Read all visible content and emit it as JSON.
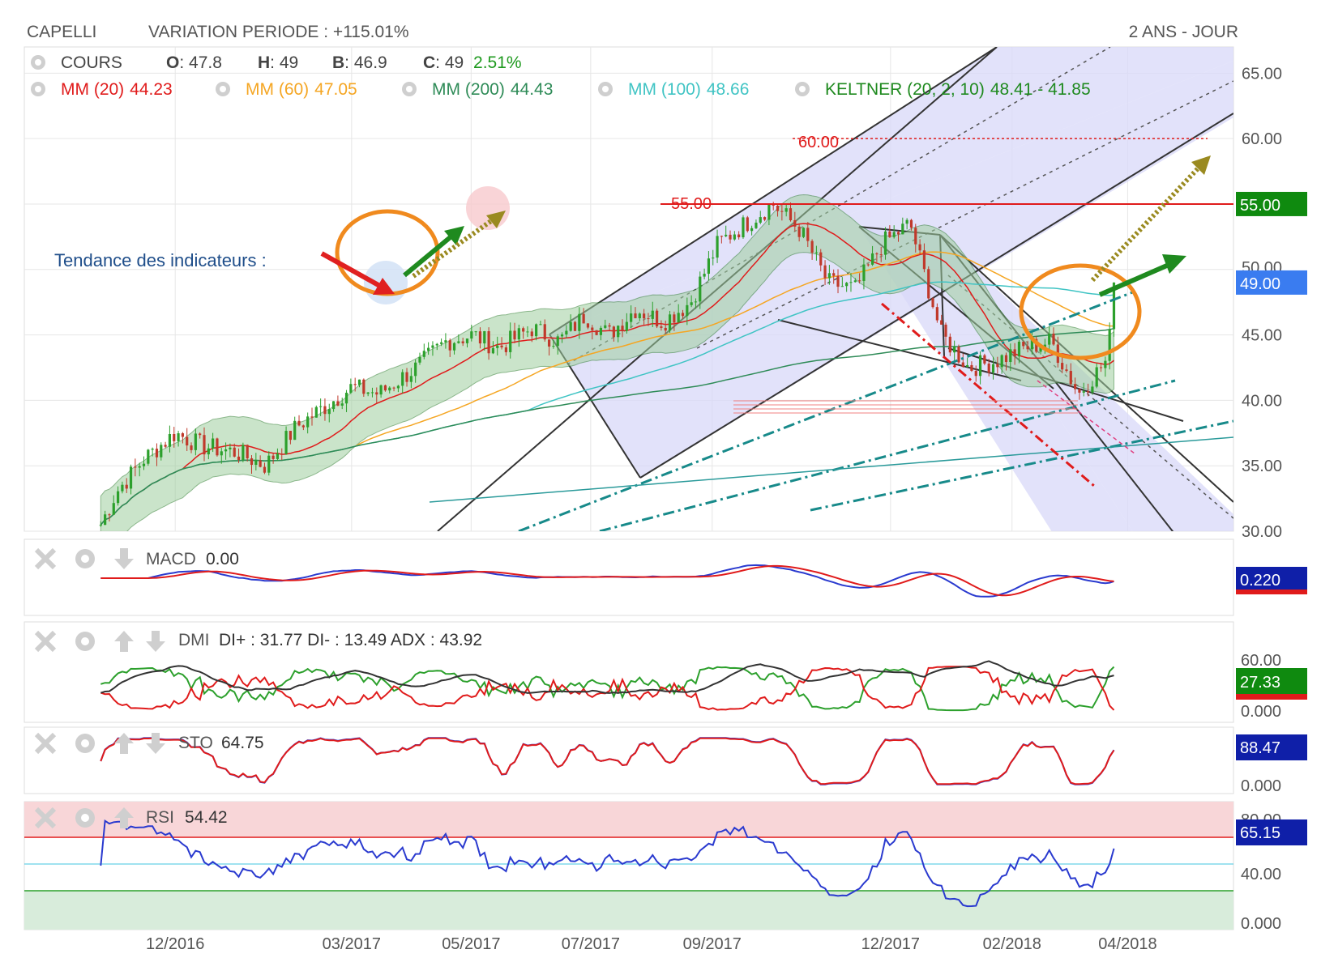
{
  "header": {
    "symbol": "CAPELLI",
    "variation": "VARIATION PERIODE : +115.01%",
    "period": "2 ANS - JOUR"
  },
  "colors": {
    "mm20": "#e01b1b",
    "mm60": "#f5a623",
    "mm200": "#2e8b57",
    "mm100": "#40c4c4",
    "keltner": "#2e8b2e",
    "channel_fill": "#d8d8f8",
    "resistance": "#e01b1b",
    "last_price_bg": "#3a7cf0",
    "level55_bg": "#0f8a0f"
  },
  "main_legend": {
    "row1": [
      {
        "icon": "gear-icon",
        "label": "COURS",
        "color": "#444444"
      },
      {
        "label": "O",
        "value": ": 47.8"
      },
      {
        "label": "H",
        "value": ": 49"
      },
      {
        "label": "B",
        "value": ": 46.9"
      },
      {
        "label": "C",
        "value": ": 49",
        "change": "2.51%"
      }
    ],
    "row2": [
      {
        "icon": "gear-icon",
        "label": "MM (20)",
        "value": "44.23",
        "color": "#e01b1b"
      },
      {
        "icon": "gear-icon",
        "label": "MM (60)",
        "value": "47.05",
        "color": "#f5a623"
      },
      {
        "icon": "gear-icon",
        "label": "MM (200)",
        "value": "44.43",
        "color": "#2e8b57"
      },
      {
        "icon": "gear-icon",
        "label": "MM (100)",
        "value": "48.66",
        "color": "#40c4c4"
      },
      {
        "icon": "gear-icon",
        "label": "KELTNER (20, 2, 10)",
        "value": "48.41 - 41.85",
        "color": "#1f8a1f"
      }
    ]
  },
  "annotations": {
    "trend_label": "Tendance des indicateurs :",
    "level_55": "55.00",
    "level_60": "60.00"
  },
  "price_axis": {
    "ticks": [
      "65.00",
      "60.00",
      "55.00",
      "50.00",
      "45.00",
      "40.00",
      "35.00",
      "30.00"
    ],
    "tag_55": "55.00",
    "tag_last": "49.00"
  },
  "x_axis": {
    "ticks": [
      "12/2016",
      "03/2017",
      "05/2017",
      "07/2017",
      "09/2017",
      "12/2017",
      "02/2018",
      "04/2018"
    ]
  },
  "panels": {
    "macd": {
      "name": "MACD",
      "value": "0.00",
      "tag": "0.220"
    },
    "dmi": {
      "name": "DMI",
      "value": "DI+ : 31.77 DI- : 13.49 ADX : 43.92",
      "tag": "27.33",
      "axis": [
        "60.00",
        "0.000"
      ]
    },
    "sto": {
      "name": "STO",
      "value": "64.75",
      "tag": "88.47",
      "axis": [
        "0.000"
      ]
    },
    "rsi": {
      "name": "RSI",
      "value": "54.42",
      "tag": "65.15",
      "axis": [
        "80.00",
        "40.00",
        "0.000"
      ]
    }
  },
  "chart_data": {
    "type": "candlestick",
    "title": "CAPELLI",
    "subtitle": "VARIATION PERIODE : +115.01%",
    "period": "2 ANS - JOUR",
    "ylim": [
      30,
      67
    ],
    "ohlc_last": {
      "open": 47.8,
      "high": 49,
      "low": 46.9,
      "close": 49,
      "change_pct": 2.51
    },
    "close_series": {
      "x": [
        "2016-10-24",
        "2016-11-01",
        "2016-11-15",
        "2016-12-01",
        "2016-12-15",
        "2017-01-02",
        "2017-01-16",
        "2017-02-01",
        "2017-02-15",
        "2017-03-01",
        "2017-03-15",
        "2017-04-03",
        "2017-04-18",
        "2017-05-02",
        "2017-05-15",
        "2017-06-01",
        "2017-06-15",
        "2017-06-28",
        "2017-07-10",
        "2017-07-24",
        "2017-08-07",
        "2017-08-21",
        "2017-09-04",
        "2017-09-18",
        "2017-10-02",
        "2017-10-16",
        "2017-10-30",
        "2017-11-13",
        "2017-11-27",
        "2017-12-11",
        "2017-12-27",
        "2018-01-10",
        "2018-01-24",
        "2018-02-07",
        "2018-02-21",
        "2018-03-07",
        "2018-03-21",
        "2018-03-27"
      ],
      "close": [
        30.5,
        33.0,
        35.5,
        37.5,
        36.5,
        36.0,
        35.0,
        38.0,
        39.5,
        41.0,
        40.5,
        42.5,
        44.5,
        45.0,
        44.0,
        45.5,
        44.5,
        46.5,
        45.0,
        47.0,
        46.0,
        47.5,
        52.0,
        53.5,
        55.0,
        53.0,
        49.0,
        48.5,
        52.0,
        53.5,
        45.0,
        42.5,
        43.0,
        44.0,
        44.5,
        40.5,
        43.0,
        49.0
      ]
    },
    "moving_averages": [
      {
        "name": "MM (20)",
        "last": 44.23
      },
      {
        "name": "MM (60)",
        "last": 47.05
      },
      {
        "name": "MM (200)",
        "last": 44.43
      },
      {
        "name": "MM (100)",
        "last": 48.66
      }
    ],
    "keltner": {
      "name": "KELTNER (20, 2, 10)",
      "upper": 48.41,
      "lower": 41.85
    },
    "resistance_levels": [
      55.0,
      60.0
    ],
    "indicators": {
      "MACD": 0.0,
      "DMI": {
        "DI+": 31.77,
        "DI-": 13.49,
        "ADX": 43.92
      },
      "STO": 64.75,
      "RSI": 54.42
    }
  }
}
